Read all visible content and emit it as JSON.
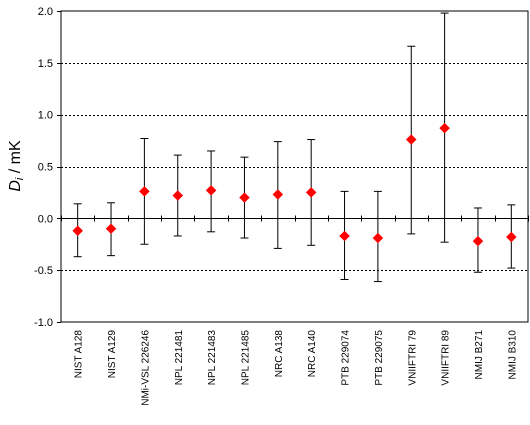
{
  "chart_data": {
    "type": "scatter",
    "ylabel_main": "D",
    "ylabel_sub": "i",
    "ylabel_unit": " / mK",
    "ylim": [
      -1.0,
      2.0
    ],
    "yticks": [
      -1.0,
      -0.5,
      0.0,
      0.5,
      1.0,
      1.5,
      2.0
    ],
    "ytick_labels": [
      "-1.0",
      "-0.5",
      "0.0",
      "0.5",
      "1.0",
      "1.5",
      "2.0"
    ],
    "grid": "dashed horizontal at ±0.5, 1.0, 1.5",
    "marker_color": "#ff0000",
    "errorbar_color": "#000000",
    "points": [
      {
        "label": "NIST A128",
        "value": -0.12,
        "low": -0.37,
        "high": 0.14
      },
      {
        "label": "NIST A129",
        "value": -0.1,
        "low": -0.36,
        "high": 0.15
      },
      {
        "label": "NMi-VSL 226246",
        "value": 0.26,
        "low": -0.25,
        "high": 0.77
      },
      {
        "label": "NPL 221481",
        "value": 0.22,
        "low": -0.17,
        "high": 0.61
      },
      {
        "label": "NPL 221483",
        "value": 0.27,
        "low": -0.13,
        "high": 0.65
      },
      {
        "label": "NPL 221485",
        "value": 0.2,
        "low": -0.19,
        "high": 0.59
      },
      {
        "label": "NRC A138",
        "value": 0.23,
        "low": -0.29,
        "high": 0.74
      },
      {
        "label": "NRC A140",
        "value": 0.25,
        "low": -0.26,
        "high": 0.76
      },
      {
        "label": "PTB 229074",
        "value": -0.17,
        "low": -0.59,
        "high": 0.26
      },
      {
        "label": "PTB 229075",
        "value": -0.19,
        "low": -0.61,
        "high": 0.26
      },
      {
        "label": "VNIIFTRI 79",
        "value": 0.76,
        "low": -0.15,
        "high": 1.66
      },
      {
        "label": "VNIIFTRI 89",
        "value": 0.87,
        "low": -0.23,
        "high": 1.98
      },
      {
        "label": "NMIJ B271",
        "value": -0.22,
        "low": -0.52,
        "high": 0.1
      },
      {
        "label": "NMIJ B310",
        "value": -0.18,
        "low": -0.48,
        "high": 0.13
      }
    ]
  }
}
